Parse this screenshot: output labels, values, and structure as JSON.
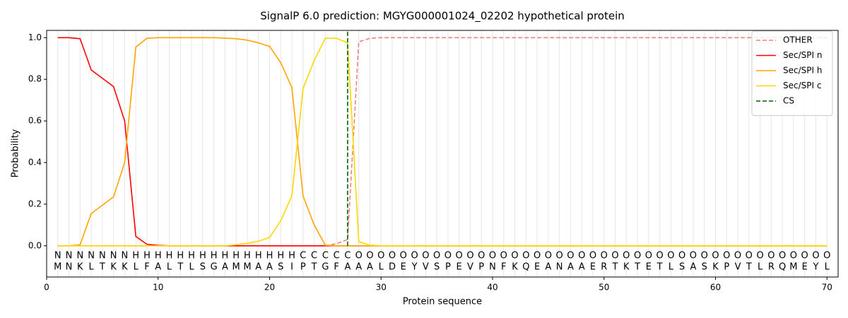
{
  "chart_data": {
    "type": "line",
    "title": "SignalP 6.0 prediction: MGYG000001024_02202 hypothetical protein",
    "xlabel": "Protein sequence",
    "ylabel": "Probability",
    "x": [
      1,
      2,
      3,
      4,
      5,
      6,
      7,
      8,
      9,
      10,
      11,
      12,
      13,
      14,
      15,
      16,
      17,
      18,
      19,
      20,
      21,
      22,
      23,
      24,
      25,
      26,
      27,
      28,
      29,
      30,
      31,
      32,
      33,
      34,
      35,
      36,
      37,
      38,
      39,
      40,
      41,
      42,
      43,
      44,
      45,
      46,
      47,
      48,
      49,
      50,
      51,
      52,
      53,
      54,
      55,
      56,
      57,
      58,
      59,
      60,
      61,
      62,
      63,
      64,
      65,
      66,
      67,
      68,
      69,
      70
    ],
    "sequence": [
      "M",
      "N",
      "K",
      "L",
      "T",
      "K",
      "K",
      "L",
      "F",
      "A",
      "L",
      "T",
      "L",
      "S",
      "G",
      "A",
      "M",
      "M",
      "A",
      "A",
      "S",
      "I",
      "P",
      "T",
      "G",
      "F",
      "A",
      "A",
      "A",
      "L",
      "D",
      "E",
      "Y",
      "V",
      "S",
      "P",
      "E",
      "V",
      "P",
      "N",
      "F",
      "K",
      "Q",
      "E",
      "A",
      "N",
      "A",
      "A",
      "E",
      "R",
      "T",
      "K",
      "T",
      "E",
      "T",
      "L",
      "S",
      "A",
      "S",
      "K",
      "P",
      "V",
      "T",
      "L",
      "R",
      "Q",
      "M",
      "E",
      "Y",
      "L"
    ],
    "regions": [
      "N",
      "N",
      "N",
      "N",
      "N",
      "N",
      "N",
      "H",
      "H",
      "H",
      "H",
      "H",
      "H",
      "H",
      "H",
      "H",
      "H",
      "H",
      "H",
      "H",
      "H",
      "H",
      "C",
      "C",
      "C",
      "C",
      "C",
      "O",
      "O",
      "O",
      "O",
      "O",
      "O",
      "O",
      "O",
      "O",
      "O",
      "O",
      "O",
      "O",
      "O",
      "O",
      "O",
      "O",
      "O",
      "O",
      "O",
      "O",
      "O",
      "O",
      "O",
      "O",
      "O",
      "O",
      "O",
      "O",
      "O",
      "O",
      "O",
      "O",
      "O",
      "O",
      "O",
      "O",
      "O",
      "O",
      "O",
      "O",
      "O",
      "O"
    ],
    "region_colors": {
      "N": "#ff0000",
      "H": "#ffa500",
      "C": "#ffd700",
      "O": "#808080"
    },
    "series": [
      {
        "name": "OTHER",
        "color": "#f08080",
        "linestyle": "dashed",
        "values": [
          0,
          0,
          0,
          0,
          0,
          0,
          0,
          0,
          0,
          0,
          0,
          0,
          0,
          0,
          0,
          0,
          0,
          0,
          0,
          0,
          0,
          0,
          0,
          0,
          0,
          0.01,
          0.03,
          0.98,
          0.997,
          1,
          1,
          1,
          1,
          1,
          1,
          1,
          1,
          1,
          1,
          1,
          1,
          1,
          1,
          1,
          1,
          1,
          1,
          1,
          1,
          1,
          1,
          1,
          1,
          1,
          1,
          1,
          1,
          1,
          1,
          1,
          1,
          1,
          1,
          1,
          1,
          1,
          1,
          1,
          1,
          1
        ]
      },
      {
        "name": "Sec/SPI n",
        "color": "#ff0000",
        "linestyle": "solid",
        "values": [
          1,
          1,
          0.995,
          0.845,
          0.805,
          0.765,
          0.6,
          0.045,
          0.007,
          0.002,
          0,
          0,
          0,
          0,
          0,
          0,
          0,
          0,
          0,
          0,
          0,
          0,
          0,
          0,
          0,
          0,
          0,
          0,
          0,
          0,
          0,
          0,
          0,
          0,
          0,
          0,
          0,
          0,
          0,
          0,
          0,
          0,
          0,
          0,
          0,
          0,
          0,
          0,
          0,
          0,
          0,
          0,
          0,
          0,
          0,
          0,
          0,
          0,
          0,
          0,
          0,
          0,
          0,
          0,
          0,
          0,
          0,
          0,
          0,
          0
        ]
      },
      {
        "name": "Sec/SPI h",
        "color": "#ffa500",
        "linestyle": "solid",
        "values": [
          0,
          0,
          0.005,
          0.155,
          0.195,
          0.235,
          0.4,
          0.955,
          0.997,
          1,
          1,
          1,
          1,
          1,
          1,
          0.998,
          0.995,
          0.988,
          0.975,
          0.958,
          0.88,
          0.76,
          0.24,
          0.1,
          0.003,
          0,
          0,
          0,
          0,
          0,
          0,
          0,
          0,
          0,
          0,
          0,
          0,
          0,
          0,
          0,
          0,
          0,
          0,
          0,
          0,
          0,
          0,
          0,
          0,
          0,
          0,
          0,
          0,
          0,
          0,
          0,
          0,
          0,
          0,
          0,
          0,
          0,
          0,
          0,
          0,
          0,
          0,
          0,
          0,
          0
        ]
      },
      {
        "name": "Sec/SPI c",
        "color": "#ffd700",
        "linestyle": "solid",
        "values": [
          0,
          0,
          0,
          0,
          0,
          0,
          0,
          0,
          0,
          0,
          0,
          0,
          0,
          0,
          0,
          0,
          0.005,
          0.012,
          0.022,
          0.04,
          0.12,
          0.24,
          0.755,
          0.89,
          0.997,
          0.997,
          0.975,
          0.02,
          0.003,
          0,
          0,
          0,
          0,
          0,
          0,
          0,
          0,
          0,
          0,
          0,
          0,
          0,
          0,
          0,
          0,
          0,
          0,
          0,
          0,
          0,
          0,
          0,
          0,
          0,
          0,
          0,
          0,
          0,
          0,
          0,
          0,
          0,
          0,
          0,
          0,
          0,
          0,
          0,
          0,
          0
        ]
      }
    ],
    "markers": [
      {
        "name": "CS",
        "color": "#006400",
        "x": 27
      }
    ],
    "xlim": [
      0,
      71
    ],
    "ylim": [
      -0.15,
      1.035
    ],
    "xticks": [
      0,
      10,
      20,
      30,
      40,
      50,
      60,
      70
    ],
    "yticks": [
      {
        "value": 0,
        "label": "0.0"
      },
      {
        "value": 0.2,
        "label": "0.2"
      },
      {
        "value": 0.4,
        "label": "0.4"
      },
      {
        "value": 0.6,
        "label": "0.6"
      },
      {
        "value": 0.8,
        "label": "0.8"
      },
      {
        "value": 1,
        "label": "1.0"
      }
    ],
    "legend": "upper right"
  }
}
